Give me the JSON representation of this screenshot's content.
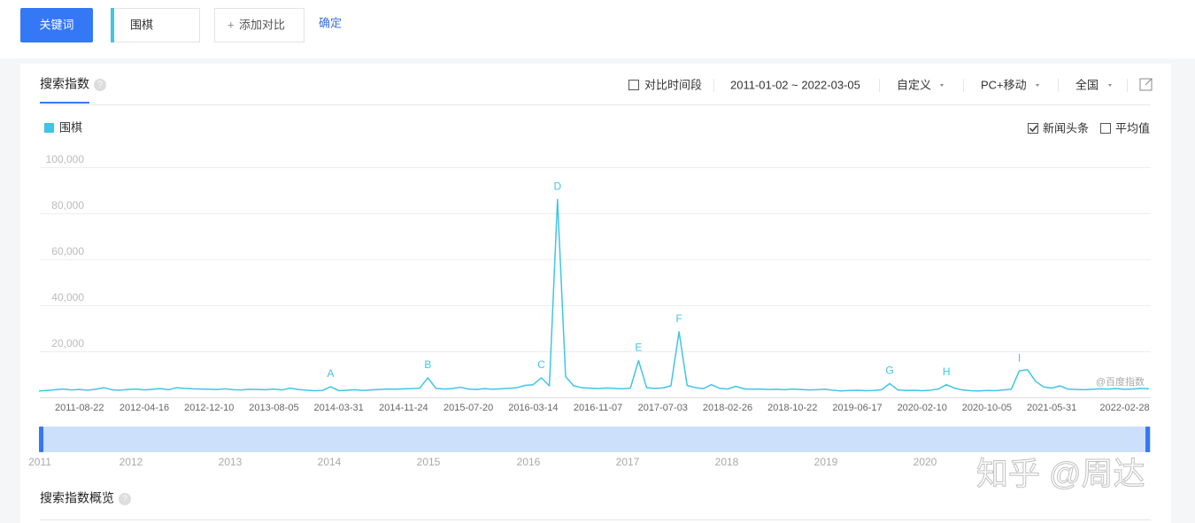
{
  "header": {
    "keyword_button": "关键词",
    "keyword": "围棋",
    "add_compare": "添加对比",
    "confirm": "确定"
  },
  "toolbar": {
    "tab": "搜索指数",
    "compare_period": "对比时间段",
    "date_range": "2011-01-02 ~ 2022-03-05",
    "custom": "自定义",
    "device": "PC+移动",
    "region": "全国"
  },
  "options": {
    "news": "新闻头条",
    "news_checked": true,
    "average": "平均值",
    "average_checked": false
  },
  "chart_data": {
    "type": "line",
    "series": [
      {
        "name": "围棋",
        "color": "#41c5e6",
        "values": [
          2800,
          3000,
          3300,
          3600,
          3200,
          3400,
          3100,
          3500,
          4200,
          3300,
          3100,
          3400,
          3600,
          3200,
          3500,
          3800,
          3300,
          4200,
          3900,
          3700,
          3600,
          3500,
          3400,
          3700,
          3300,
          3200,
          3500,
          3400,
          3300,
          3600,
          3200,
          4000,
          3400,
          3100,
          2900,
          3000,
          4600,
          2900,
          3100,
          3300,
          3000,
          3200,
          3400,
          3600,
          3500,
          3700,
          3800,
          4000,
          8500,
          3900,
          3600,
          3800,
          4400,
          3600,
          3400,
          3800,
          3500,
          3700,
          3900,
          4200,
          5200,
          5500,
          8500,
          5000,
          86000,
          9000,
          5000,
          4200,
          4000,
          3800,
          4100,
          3900,
          3700,
          4000,
          16000,
          4200,
          3900,
          4100,
          5000,
          28500,
          5200,
          4200,
          3800,
          5500,
          3900,
          3600,
          4800,
          3700,
          3500,
          3600,
          3400,
          3500,
          3300,
          3600,
          3400,
          3200,
          3300,
          3500,
          3100,
          2800,
          3000,
          3100,
          2900,
          3000,
          3300,
          6000,
          3200,
          3000,
          3100,
          2900,
          3100,
          3600,
          5500,
          4000,
          3200,
          2900,
          2800,
          3000,
          2900,
          3200,
          3500,
          11500,
          12000,
          7000,
          4500,
          4000,
          5000,
          3600,
          3400,
          3300,
          3500,
          3700,
          3600,
          3800,
          3500,
          3600,
          3900,
          3700
        ]
      }
    ],
    "categories": [
      null,
      null,
      null,
      null,
      null,
      "2011-08-22",
      null,
      null,
      null,
      null,
      null,
      null,
      null,
      "2012-04-16",
      null,
      null,
      null,
      null,
      null,
      null,
      null,
      "2012-12-10",
      null,
      null,
      null,
      null,
      null,
      null,
      null,
      "2013-08-05",
      null,
      null,
      null,
      null,
      null,
      null,
      null,
      "2014-03-31",
      null,
      null,
      null,
      null,
      null,
      null,
      null,
      "2014-11-24",
      null,
      null,
      null,
      null,
      null,
      null,
      null,
      "2015-07-20",
      null,
      null,
      null,
      null,
      null,
      null,
      null,
      "2016-03-14",
      null,
      null,
      null,
      null,
      null,
      null,
      null,
      "2016-11-07",
      null,
      null,
      null,
      null,
      null,
      null,
      null,
      "2017-07-03",
      null,
      null,
      null,
      null,
      null,
      null,
      null,
      "2018-02-26",
      null,
      null,
      null,
      null,
      null,
      null,
      null,
      "2018-10-22",
      null,
      null,
      null,
      null,
      null,
      null,
      null,
      "2019-06-17",
      null,
      null,
      null,
      null,
      null,
      null,
      null,
      "2020-02-10",
      null,
      null,
      null,
      null,
      null,
      null,
      null,
      "2020-10-05",
      null,
      null,
      null,
      null,
      null,
      null,
      null,
      "2021-05-31",
      null,
      null,
      null,
      null,
      null,
      null,
      null,
      null,
      "2022-02-28",
      null,
      null,
      null
    ],
    "point_labels": [
      null,
      null,
      null,
      null,
      null,
      null,
      null,
      null,
      null,
      null,
      null,
      null,
      null,
      null,
      null,
      null,
      null,
      null,
      null,
      null,
      null,
      null,
      null,
      null,
      null,
      null,
      null,
      null,
      null,
      null,
      null,
      null,
      null,
      null,
      null,
      null,
      "A",
      null,
      null,
      null,
      null,
      null,
      null,
      null,
      null,
      null,
      null,
      null,
      "B",
      null,
      null,
      null,
      null,
      null,
      null,
      null,
      null,
      null,
      null,
      null,
      null,
      null,
      "C",
      null,
      "D",
      null,
      null,
      null,
      null,
      null,
      null,
      null,
      null,
      null,
      "E",
      null,
      null,
      null,
      null,
      "F",
      null,
      null,
      null,
      null,
      null,
      null,
      null,
      null,
      null,
      null,
      null,
      null,
      null,
      null,
      null,
      null,
      null,
      null,
      null,
      null,
      null,
      null,
      null,
      null,
      null,
      "G",
      null,
      null,
      null,
      null,
      null,
      null,
      "H",
      null,
      null,
      null,
      null,
      null,
      null,
      null,
      null,
      "I",
      null,
      null,
      null,
      null,
      null,
      null,
      null,
      null,
      null,
      null,
      null,
      null,
      null,
      null,
      null,
      null
    ],
    "ylim": [
      0,
      100000
    ],
    "yticks": [
      {
        "value": 20000,
        "label": "20,000"
      },
      {
        "value": 40000,
        "label": "40,000"
      },
      {
        "value": 60000,
        "label": "60,000"
      },
      {
        "value": 80000,
        "label": "80,000"
      },
      {
        "value": 100000,
        "label": "100,000"
      }
    ],
    "grid": true,
    "watermark": "@百度指数"
  },
  "navigator": {
    "years": [
      "2011",
      "2012",
      "2013",
      "2014",
      "2015",
      "2016",
      "2017",
      "2018",
      "2019",
      "2020"
    ]
  },
  "overview": {
    "title": "搜索指数概览"
  },
  "watermark": "知乎 @周达"
}
